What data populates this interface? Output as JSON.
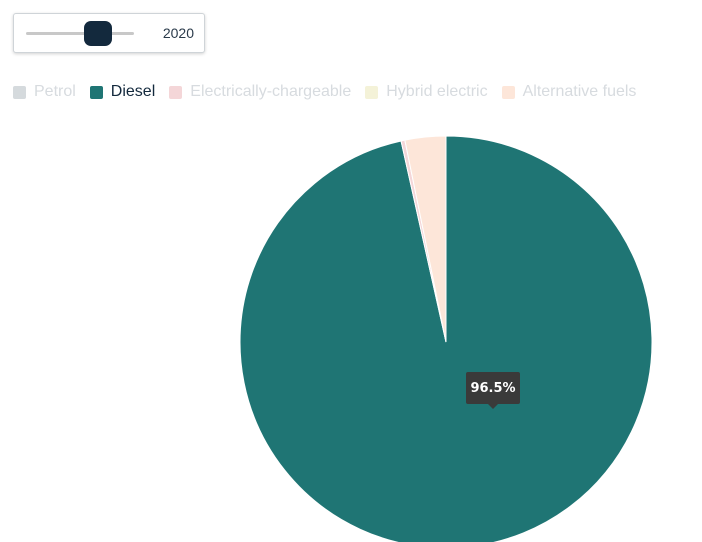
{
  "year_selector": {
    "value": "2020",
    "position": 0.67
  },
  "legend": [
    {
      "label": "Petrol",
      "color": "#d5dadd",
      "active": false
    },
    {
      "label": "Diesel",
      "color": "#1f7574",
      "active": true
    },
    {
      "label": "Electrically-chargeable",
      "color": "#f4d6d8",
      "active": false
    },
    {
      "label": "Hybrid electric",
      "color": "#f4f2d8",
      "active": false
    },
    {
      "label": "Alternative fuels",
      "color": "#fde6d9",
      "active": false
    }
  ],
  "tooltip": {
    "text": "96.5%"
  },
  "chart_data": {
    "type": "pie",
    "categories": [
      "Petrol",
      "Diesel",
      "Electrically-chargeable",
      "Hybrid electric",
      "Alternative fuels"
    ],
    "values": [
      0.0,
      96.5,
      0.3,
      0.0,
      3.2
    ],
    "colors": [
      "#d5dadd",
      "#1f7574",
      "#f4d6d8",
      "#f4f2d8",
      "#fde6d9"
    ],
    "highlighted": "Diesel",
    "legend_position": "top"
  }
}
